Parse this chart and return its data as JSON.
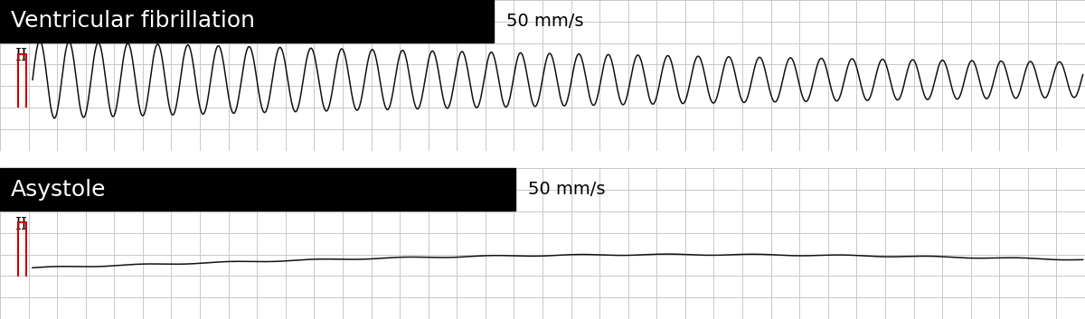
{
  "title1": "Ventricular fibrillation",
  "title2": "Asystole",
  "speed_label": "50 mm/s",
  "title_bg": "#000000",
  "title_fg": "#ffffff",
  "grid_color": "#c8c8c8",
  "ecg_color": "#111111",
  "red_color": "#cc0000",
  "bg_color": "#ffffff",
  "title_fontsize": 18,
  "speed_fontsize": 14,
  "lead_fontsize": 13,
  "fig_width": 12.0,
  "fig_height": 3.53
}
